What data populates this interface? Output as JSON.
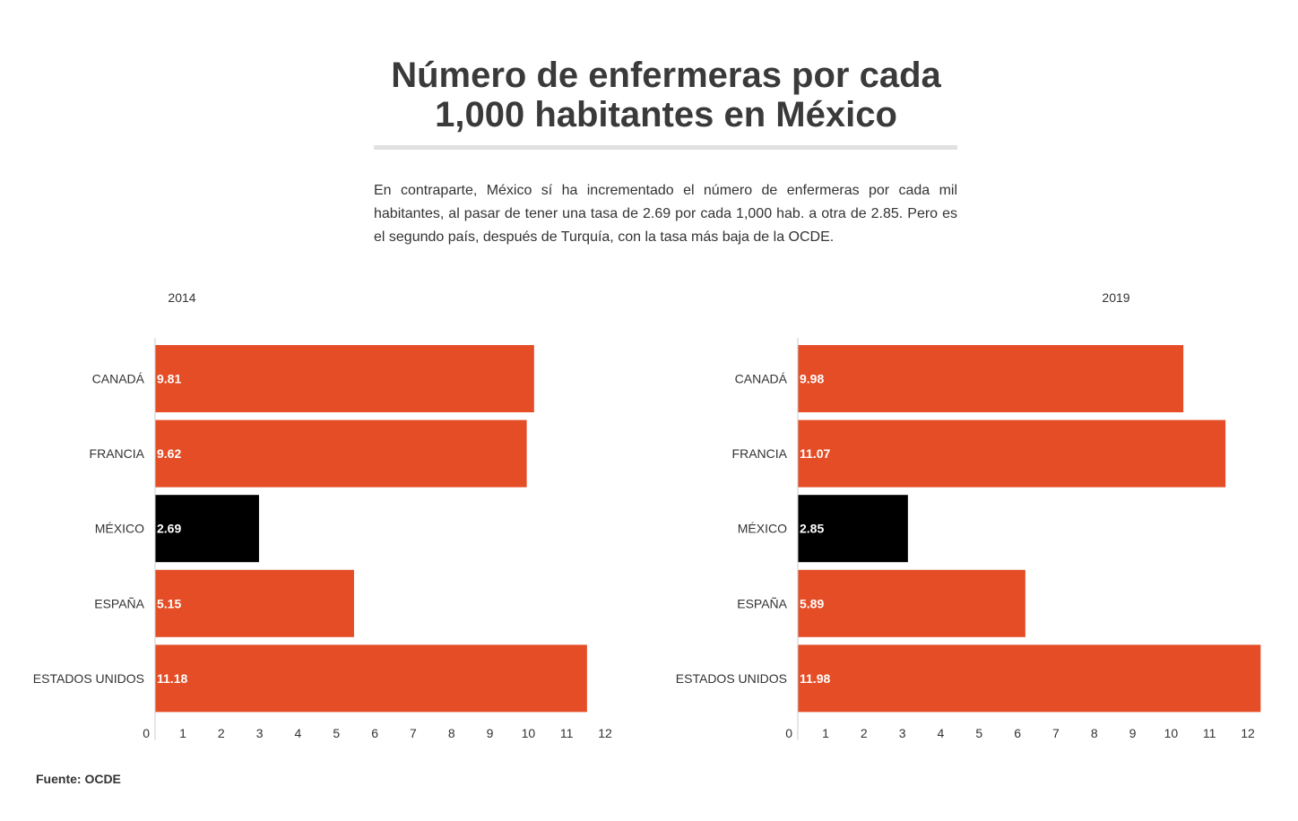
{
  "title_line1": "Número de enfermeras por cada",
  "title_line2": "1,000 habitantes en México",
  "description": "En contraparte, México sí ha incrementado el número de enfermeras por cada mil habitantes, al pasar de tener una tasa de 2.69 por cada 1,000 hab. a otra de 2.85. Pero es el segundo país, después de Turquía, con la tasa más baja de la OCDE.",
  "source": "Fuente: OCDE",
  "colors": {
    "bar": "#e44d26",
    "highlight": "#000000",
    "axis": "#cccccc",
    "label": "#333333"
  },
  "chart_data": [
    {
      "type": "bar",
      "orientation": "horizontal",
      "title": "2014",
      "categories": [
        "CANADÁ",
        "FRANCIA",
        "MÉXICO",
        "ESPAÑA",
        "ESTADOS UNIDOS"
      ],
      "values": [
        9.81,
        9.62,
        2.69,
        5.15,
        11.18
      ],
      "data_labels": [
        "9.81",
        "9.62",
        "2.69",
        "5.15",
        "11.18"
      ],
      "highlight": "MÉXICO",
      "ticks": [
        "0",
        "1",
        "2",
        "3",
        "4",
        "5",
        "6",
        "7",
        "8",
        "9",
        "10",
        "11",
        "12"
      ],
      "xlim": [
        0,
        12
      ],
      "grid": false
    },
    {
      "type": "bar",
      "orientation": "horizontal",
      "title": "2019",
      "categories": [
        "CANADÁ",
        "FRANCIA",
        "MÉXICO",
        "ESPAÑA",
        "ESTADOS UNIDOS"
      ],
      "values": [
        9.98,
        11.07,
        2.85,
        5.89,
        11.98
      ],
      "data_labels": [
        "9.98",
        "11.07",
        "2.85",
        "5.89",
        "11.98"
      ],
      "highlight": "MÉXICO",
      "ticks": [
        "0",
        "1",
        "2",
        "3",
        "4",
        "5",
        "6",
        "7",
        "8",
        "9",
        "10",
        "11",
        "12"
      ],
      "xlim": [
        0,
        12
      ],
      "grid": false
    }
  ]
}
